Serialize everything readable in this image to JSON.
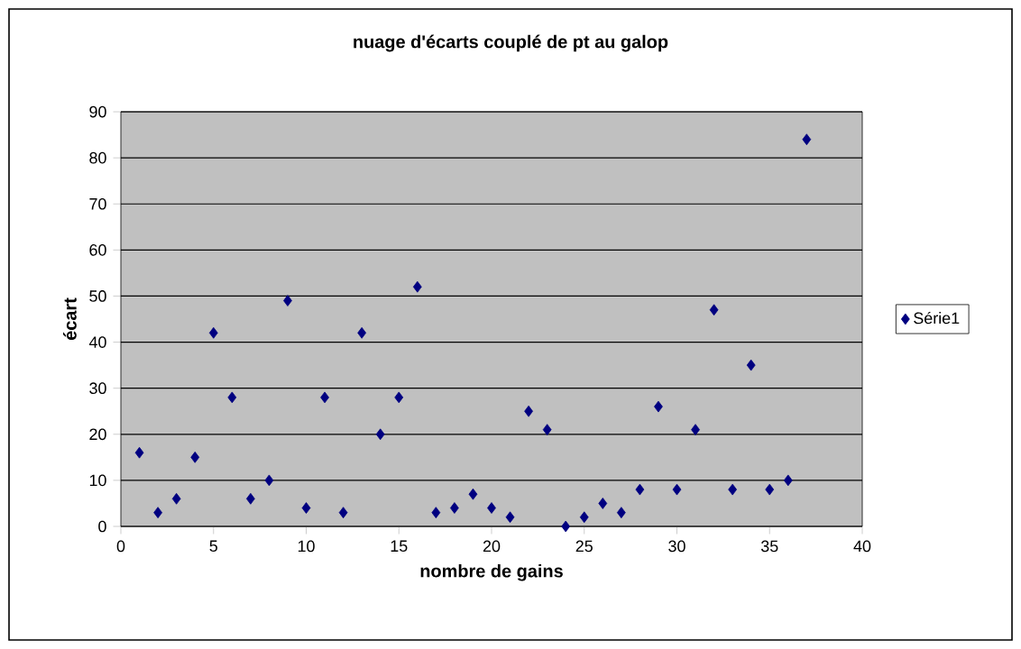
{
  "chart_data": {
    "type": "scatter",
    "title": "nuage d'écarts couplé de pt au galop",
    "xlabel": "nombre de gains",
    "ylabel": "écart",
    "x": [
      1,
      2,
      3,
      4,
      5,
      6,
      7,
      8,
      9,
      10,
      11,
      12,
      13,
      14,
      15,
      16,
      17,
      18,
      19,
      20,
      21,
      22,
      23,
      24,
      25,
      26,
      27,
      28,
      29,
      30,
      31,
      32,
      33,
      34,
      35,
      36,
      37
    ],
    "series": [
      {
        "name": "Série1",
        "color": "#000080",
        "values": [
          16,
          3,
          6,
          15,
          42,
          28,
          6,
          10,
          49,
          4,
          28,
          3,
          42,
          20,
          28,
          52,
          3,
          4,
          7,
          4,
          2,
          25,
          21,
          0,
          2,
          5,
          3,
          8,
          26,
          8,
          21,
          47,
          8,
          35,
          8,
          10,
          84
        ]
      }
    ],
    "xlim": [
      0,
      40
    ],
    "ylim": [
      0,
      90
    ],
    "xticks": [
      0,
      5,
      10,
      15,
      20,
      25,
      30,
      35,
      40
    ],
    "yticks": [
      0,
      10,
      20,
      30,
      40,
      50,
      60,
      70,
      80,
      90
    ],
    "grid": "y",
    "legend": "right",
    "marker": "diamond"
  }
}
